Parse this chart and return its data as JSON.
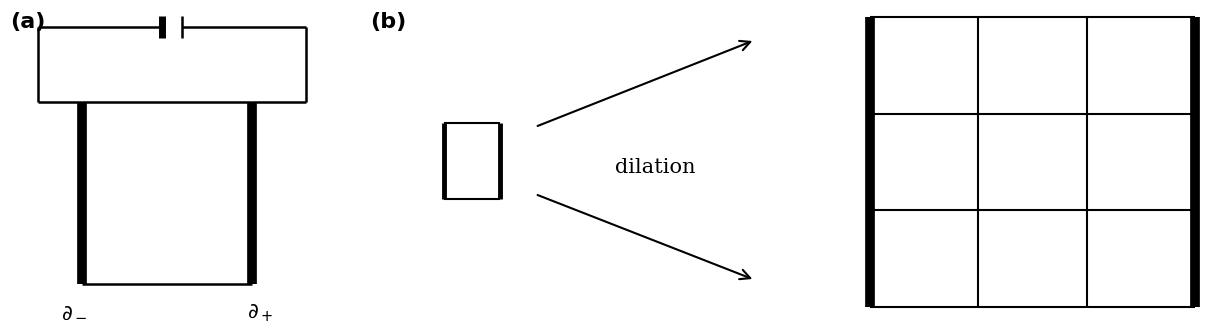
{
  "fig_width": 12.16,
  "fig_height": 3.22,
  "bg_color": "#ffffff",
  "label_a": "(a)",
  "label_b": "(b)",
  "dilation_text": "dilation"
}
